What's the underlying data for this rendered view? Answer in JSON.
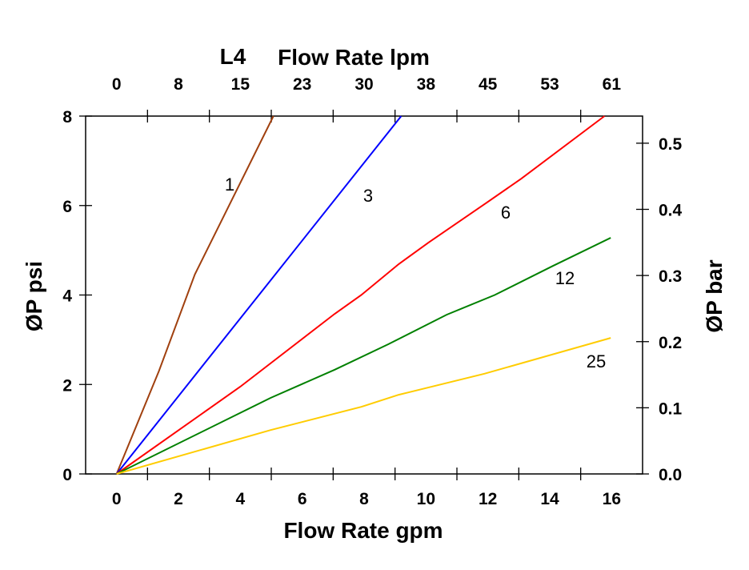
{
  "chart_data": {
    "type": "line",
    "series_label": "L4",
    "xlabel": "Flow Rate gpm",
    "xlabel_top": "Flow Rate lpm",
    "ylabel": "ØP psi",
    "ylabel_right": "ØP bar",
    "xlim": [
      -1,
      17
    ],
    "ylim": [
      0,
      8
    ],
    "ylim_right": [
      0,
      0.541
    ],
    "x_ticks": [
      "0",
      "2",
      "4",
      "6",
      "8",
      "10",
      "12",
      "14",
      "16"
    ],
    "x_tick_values": [
      0,
      2,
      4,
      6,
      8,
      10,
      12,
      14,
      16
    ],
    "x_top_ticks": [
      "0",
      "8",
      "15",
      "23",
      "30",
      "38",
      "45",
      "53",
      "61"
    ],
    "y_ticks": [
      "0",
      "2",
      "4",
      "6",
      "8"
    ],
    "y_tick_values": [
      0,
      2,
      4,
      6,
      8
    ],
    "y_right_ticks": [
      "0.0",
      "0.1",
      "0.2",
      "0.3",
      "0.4",
      "0.5"
    ],
    "y_right_tick_values": [
      0,
      0.1,
      0.2,
      0.3,
      0.4,
      0.5
    ],
    "grid": false,
    "series": [
      {
        "name": "1",
        "color": "#a0400f",
        "x": [
          0,
          1.37,
          2.53,
          5.07
        ],
        "y": [
          0,
          2.3,
          4.46,
          8.0
        ]
      },
      {
        "name": "3",
        "color": "#0000ff",
        "x": [
          0,
          4.98,
          9.2
        ],
        "y": [
          0,
          4.33,
          8.0
        ]
      },
      {
        "name": "6",
        "color": "#ff0000",
        "x": [
          0,
          4,
          7.05,
          7.91,
          9.12,
          10.08,
          11.89,
          13.08,
          15.77
        ],
        "y": [
          0,
          1.95,
          3.58,
          4.0,
          4.69,
          5.17,
          6.03,
          6.6,
          8.0
        ]
      },
      {
        "name": "12",
        "color": "#008000",
        "x": [
          0,
          4.98,
          7.05,
          8.78,
          10.67,
          12.22,
          14.1,
          15.97
        ],
        "y": [
          0,
          1.7,
          2.33,
          2.9,
          3.56,
          4.0,
          4.65,
          5.28
        ]
      },
      {
        "name": "25",
        "color": "#ffcc00",
        "x": [
          0,
          4.98,
          7.91,
          9.12,
          11.89,
          15.97
        ],
        "y": [
          0,
          0.98,
          1.5,
          1.77,
          2.24,
          3.04
        ]
      }
    ]
  }
}
